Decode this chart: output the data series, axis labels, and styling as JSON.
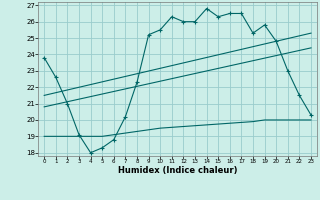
{
  "xlabel": "Humidex (Indice chaleur)",
  "bg_color": "#cceee8",
  "grid_color": "#99cccc",
  "line_color": "#006666",
  "xlim": [
    -0.5,
    23.5
  ],
  "ylim": [
    17.8,
    27.2
  ],
  "yticks": [
    18,
    19,
    20,
    21,
    22,
    23,
    24,
    25,
    26,
    27
  ],
  "xticks": [
    0,
    1,
    2,
    3,
    4,
    5,
    6,
    7,
    8,
    9,
    10,
    11,
    12,
    13,
    14,
    15,
    16,
    17,
    18,
    19,
    20,
    21,
    22,
    23
  ],
  "series1_x": [
    0,
    1,
    2,
    3,
    4,
    5,
    6,
    7,
    8,
    9,
    10,
    11,
    12,
    13,
    14,
    15,
    16,
    17,
    18,
    19,
    20,
    21,
    22,
    23
  ],
  "series1_y": [
    23.8,
    22.6,
    21.0,
    19.1,
    18.0,
    18.3,
    18.8,
    20.2,
    22.3,
    25.2,
    25.5,
    26.3,
    26.0,
    26.0,
    26.8,
    26.3,
    26.5,
    26.5,
    25.3,
    25.8,
    24.8,
    23.0,
    21.5,
    20.3
  ],
  "series2_x": [
    0,
    23
  ],
  "series2_y": [
    21.5,
    25.3
  ],
  "series3_x": [
    0,
    23
  ],
  "series3_y": [
    20.8,
    24.4
  ],
  "series4_x": [
    0,
    1,
    2,
    3,
    4,
    5,
    6,
    7,
    8,
    9,
    10,
    11,
    12,
    13,
    14,
    15,
    16,
    17,
    18,
    19,
    20,
    21,
    22,
    23
  ],
  "series4_y": [
    19.0,
    19.0,
    19.0,
    19.0,
    19.0,
    19.0,
    19.1,
    19.2,
    19.3,
    19.4,
    19.5,
    19.55,
    19.6,
    19.65,
    19.7,
    19.75,
    19.8,
    19.85,
    19.9,
    20.0,
    20.0,
    20.0,
    20.0,
    20.0
  ]
}
